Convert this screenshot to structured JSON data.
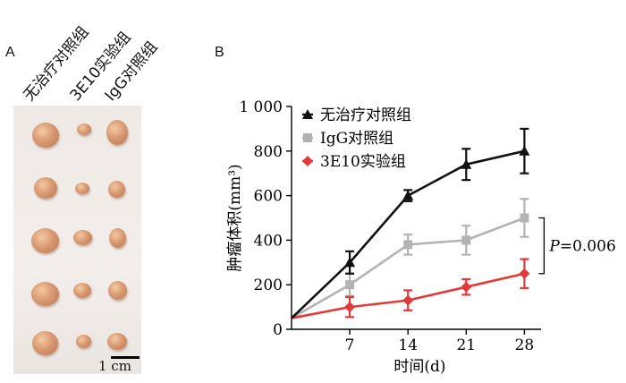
{
  "panel_a": {
    "letter": "A",
    "column_labels": [
      "无治疗对照组",
      "3E10实验组",
      "IgG对照组"
    ],
    "scale_label": "1 cm"
  },
  "panel_b": {
    "letter": "B"
  },
  "chart_data": {
    "type": "line",
    "x": [
      0,
      7,
      14,
      21,
      28
    ],
    "x_tick_labels": [
      "7",
      "14",
      "21",
      "28"
    ],
    "xlabel": "时间(d)",
    "ylabel": "肿瘤体积(mm³)",
    "ylim": [
      0,
      1000
    ],
    "y_ticks": [
      0,
      200,
      400,
      600,
      800,
      1000
    ],
    "y_tick_labels": [
      "0",
      "200",
      "400",
      "600",
      "800",
      "1 000"
    ],
    "legend_position": "top-left",
    "series": [
      {
        "name": "无治疗对照组",
        "color": "#111111",
        "marker": "triangle",
        "values": [
          50,
          300,
          600,
          740,
          800
        ],
        "errors": [
          0,
          50,
          25,
          70,
          100
        ]
      },
      {
        "name": "IgG对照组",
        "color": "#b3b3b3",
        "marker": "square",
        "values": [
          50,
          200,
          380,
          400,
          500
        ],
        "errors": [
          0,
          50,
          45,
          65,
          85
        ]
      },
      {
        "name": "3E10实验组",
        "color": "#e03a3a",
        "marker": "diamond",
        "values": [
          50,
          100,
          130,
          190,
          250
        ],
        "errors": [
          0,
          45,
          45,
          35,
          65
        ]
      }
    ],
    "annotation": {
      "prefix": "P",
      "text": "=0.006"
    }
  }
}
